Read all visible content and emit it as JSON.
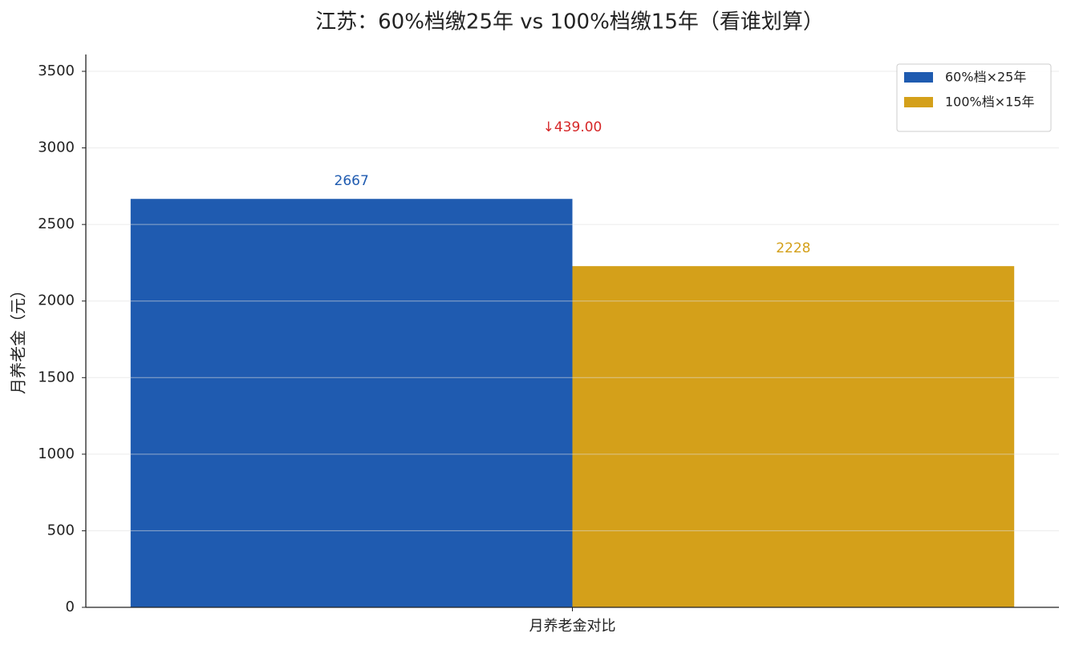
{
  "chart_data": {
    "type": "bar",
    "title": "江苏：60%档缴25年 vs 100%档缴15年（看谁划算）",
    "ylabel": "月养老金（元）",
    "categories": [
      "月养老金对比"
    ],
    "series": [
      {
        "name": "60%档×25年",
        "color": "#1f5bb0",
        "values": [
          2667
        ]
      },
      {
        "name": "100%档×15年",
        "color": "#d4a01a",
        "values": [
          2228
        ]
      }
    ],
    "annotation": "↓439.00",
    "annotation_color": "#d62728",
    "ylim": [
      0,
      3610
    ],
    "yticks": [
      0,
      500,
      1000,
      1500,
      2000,
      2500,
      3000,
      3500
    ],
    "grid": true,
    "legend": "upper right"
  }
}
